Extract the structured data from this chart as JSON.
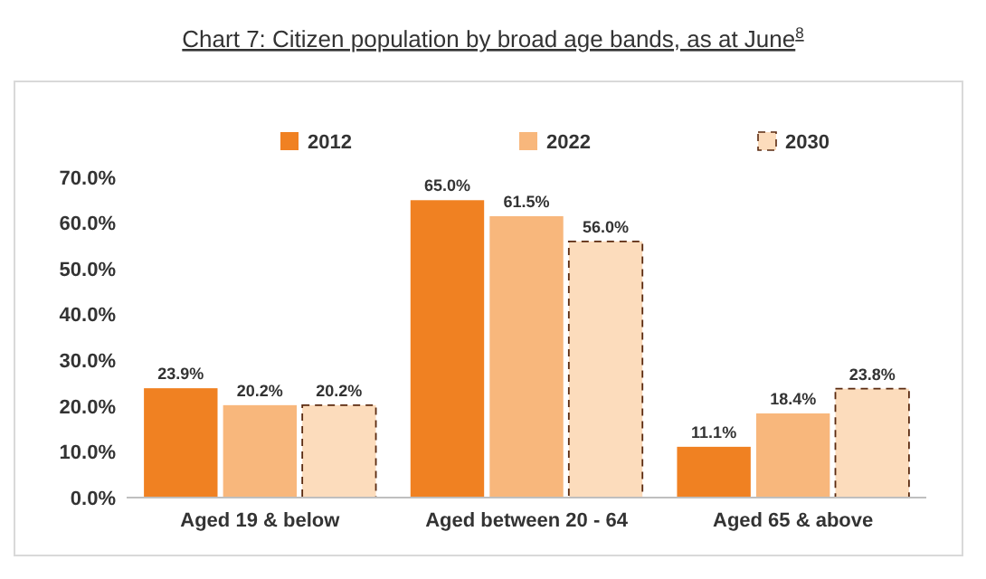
{
  "chart_data": {
    "type": "bar",
    "title": "Chart 7: Citizen population by broad age bands, as at June$^{8}$",
    "categories": [
      "Aged 19 & below",
      "Aged between 20 - 64",
      "Aged 65 & above"
    ],
    "series": [
      {
        "name": "2012",
        "color": "#f08122",
        "values": [
          23.9,
          65.0,
          11.1
        ],
        "value_labels": [
          "23.9%",
          "65.0%",
          "11.1%"
        ]
      },
      {
        "name": "2022",
        "color": "#f8b77c",
        "values": [
          20.2,
          61.5,
          18.4
        ],
        "value_labels": [
          "20.2%",
          "61.5%",
          "18.4%"
        ]
      },
      {
        "name": "2030",
        "color": "#fcdcbc",
        "values": [
          20.2,
          56.0,
          23.8
        ],
        "value_labels": [
          "20.2%",
          "56.0%",
          "23.8%"
        ],
        "line_style": "dashed"
      }
    ],
    "ylim": [
      0,
      70
    ],
    "yticks": [
      {
        "value": 0,
        "label": "0.0%"
      },
      {
        "value": 10,
        "label": "10.0%"
      },
      {
        "value": 20,
        "label": "20.0%"
      },
      {
        "value": 30,
        "label": "30.0%"
      },
      {
        "value": 40,
        "label": "40.0%"
      },
      {
        "value": 50,
        "label": "50.0%"
      },
      {
        "value": 60,
        "label": "60.0%"
      },
      {
        "value": 70,
        "label": "70.0%"
      }
    ],
    "legend": "top",
    "grid": false
  }
}
